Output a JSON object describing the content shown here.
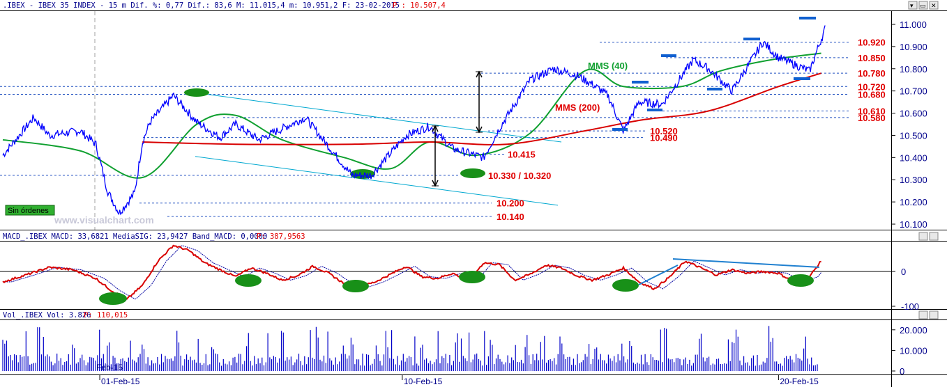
{
  "header": {
    "price": ".IBEX - IBEX 35 INDEX -  15 m Dif. %: 0,77 Dif.: 83,6 M: 11.015,4 m: 10.951,2 F: 23-02-2015",
    "price_p": "P : 10.507,4",
    "macd": "MACD_.IBEX MACD: 33,6821 MediaSIG: 23,9427 Band_MACD: 0,0000",
    "macd_p": "P: 387,9563",
    "vol": "Vol_.IBEX Vol: 3.826",
    "vol_p": "P: 110,015"
  },
  "watermark": "www.visualchart.com",
  "badge": "Sin órdenes",
  "window_buttons": [
    "▾",
    "▭",
    "✕"
  ],
  "colors": {
    "price": "#0000ff",
    "mma40": "#10a030",
    "mma200": "#d80000",
    "macd": "#d80000",
    "signal": "#0000a0",
    "volume": "#0000c8",
    "trend": "#00a8d0",
    "ellipse": "#189018",
    "label": "#e00000",
    "axis": "#00008b"
  },
  "chart_data": [
    {
      "type": "line",
      "title": ".IBEX - IBEX 35 INDEX - 15 m",
      "y_ticks": [
        "11.000",
        "10.900",
        "10.800",
        "10.700",
        "10.600",
        "10.500",
        "10.400",
        "10.300",
        "10.200",
        "10.100"
      ],
      "y_tick_values": [
        11000,
        10900,
        10800,
        10700,
        10600,
        10500,
        10400,
        10300,
        10200,
        10100
      ],
      "ylim": [
        10070,
        11050
      ],
      "x_ticks": [
        "01-Feb-15",
        "10-Feb-15",
        "20-Feb-15"
      ],
      "x_tick_index": [
        25,
        103,
        200
      ],
      "n_bars": 211,
      "series": [
        {
          "name": "MMS (40)",
          "x": [
            0,
            20,
            36,
            50,
            60,
            72,
            88,
            100,
            110,
            122,
            136,
            150,
            160,
            175,
            185,
            198,
            211
          ],
          "y": [
            10480,
            10430,
            10310,
            10550,
            10590,
            10480,
            10400,
            10350,
            10470,
            10410,
            10510,
            10790,
            10720,
            10720,
            10790,
            10840,
            10870
          ]
        },
        {
          "name": "MMS (200)",
          "x": [
            36,
            60,
            90,
            110,
            130,
            150,
            165,
            182,
            200,
            211
          ],
          "y": [
            10470,
            10460,
            10460,
            10470,
            10460,
            10520,
            10570,
            10610,
            10720,
            10780
          ]
        }
      ],
      "price_anchor": {
        "x": [
          0,
          8,
          12,
          20,
          24,
          27,
          30,
          34,
          36,
          38,
          44,
          50,
          56,
          60,
          66,
          72,
          78,
          90,
          95,
          104,
          110,
          116,
          124,
          128,
          136,
          142,
          148,
          152,
          156,
          160,
          164,
          170,
          178,
          182,
          188,
          196,
          200,
          208,
          212
        ],
        "y": [
          10410,
          10580,
          10500,
          10520,
          10460,
          10250,
          10150,
          10240,
          10470,
          10560,
          10680,
          10560,
          10490,
          10550,
          10480,
          10530,
          10580,
          10320,
          10320,
          10500,
          10540,
          10440,
          10400,
          10530,
          10750,
          10800,
          10770,
          10730,
          10680,
          10520,
          10650,
          10640,
          10840,
          10800,
          10700,
          10920,
          10850,
          10790,
          10980
        ]
      },
      "levels": [
        {
          "label": "10.920",
          "value": 10920
        },
        {
          "label": "10.850",
          "value": 10850
        },
        {
          "label": "10.780",
          "value": 10780
        },
        {
          "label": "10.720",
          "value": 10720
        },
        {
          "label": "10.680",
          "value": 10685
        },
        {
          "label": "10.610",
          "value": 10610
        },
        {
          "label": "10.580",
          "value": 10580
        },
        {
          "label": "10.520",
          "value": 10520
        },
        {
          "label": "10.490",
          "value": 10490
        },
        {
          "label": "10.415",
          "value": 10415
        },
        {
          "label": "10.330 / 10.320",
          "value": 10320
        },
        {
          "label": "10.200",
          "value": 10195
        },
        {
          "label": "10.140",
          "value": 10135
        }
      ],
      "annotations": [
        "MMS (40)",
        "MMS (200)"
      ]
    },
    {
      "type": "line",
      "title": "MACD_.IBEX",
      "y_ticks": [
        "0",
        "-100"
      ],
      "y_tick_values": [
        0,
        -100
      ],
      "ylim": [
        -110,
        110
      ]
    },
    {
      "type": "bar",
      "title": "Vol_.IBEX",
      "y_ticks": [
        "20.000",
        "10.000",
        "0"
      ],
      "y_tick_values": [
        20000,
        10000,
        0
      ],
      "ylim": [
        0,
        24000
      ],
      "x_label_tag": "Feb-15"
    }
  ]
}
